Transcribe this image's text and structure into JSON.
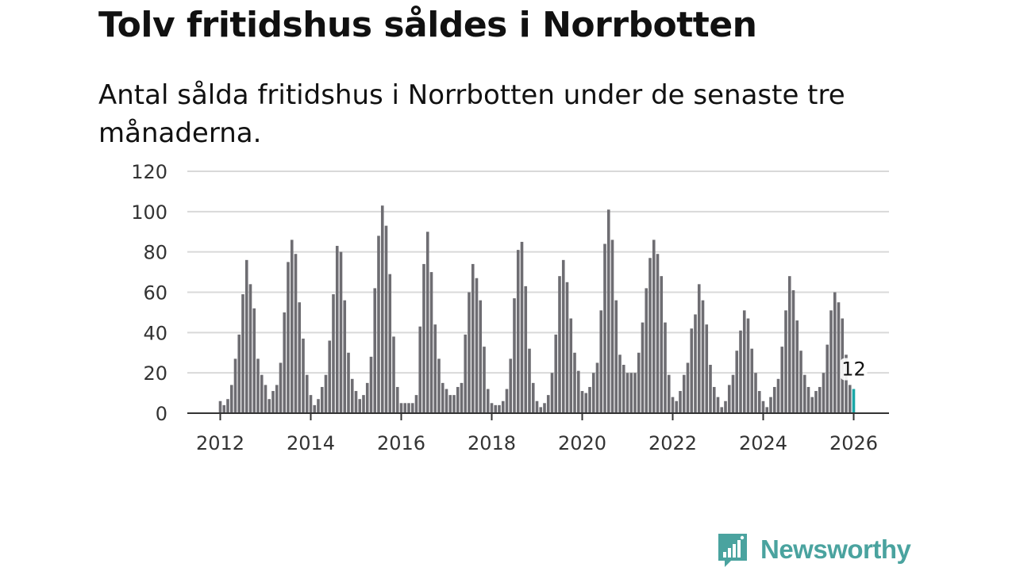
{
  "title": "Tolv fritidshus såldes i Norrbotten",
  "subtitle": "Antal sålda fritidshus i Norrbotten under de senaste tre månaderna.",
  "brand": {
    "name": "Newsworthy",
    "color": "#4aa39f",
    "icon": "newsworthy-logo-icon"
  },
  "colors": {
    "bar": "#6e6d72",
    "highlight": "#1ba7a7",
    "grid": "#d9d9d9",
    "axis": "#333333"
  },
  "chart_data": {
    "type": "bar",
    "x_start": "2012-01",
    "frequency": "monthly",
    "ylim": [
      0,
      120
    ],
    "yticks": [
      0,
      20,
      40,
      60,
      80,
      100,
      120
    ],
    "xticks": [
      "2012",
      "2014",
      "2016",
      "2018",
      "2020",
      "2022",
      "2024",
      "2026"
    ],
    "grid": true,
    "highlight_last": true,
    "last_label": "12",
    "values": [
      6,
      4,
      7,
      14,
      27,
      39,
      59,
      76,
      64,
      52,
      27,
      19,
      14,
      7,
      11,
      14,
      25,
      50,
      75,
      86,
      79,
      55,
      37,
      19,
      9,
      4,
      7,
      13,
      19,
      36,
      59,
      83,
      80,
      56,
      30,
      17,
      11,
      7,
      9,
      15,
      28,
      62,
      88,
      103,
      93,
      69,
      38,
      13,
      5,
      5,
      5,
      5,
      9,
      43,
      74,
      90,
      70,
      44,
      27,
      15,
      12,
      9,
      9,
      13,
      15,
      39,
      60,
      74,
      67,
      56,
      33,
      12,
      5,
      4,
      4,
      6,
      12,
      27,
      57,
      81,
      85,
      63,
      32,
      15,
      6,
      3,
      5,
      9,
      20,
      39,
      68,
      76,
      65,
      47,
      30,
      21,
      11,
      10,
      13,
      20,
      25,
      51,
      84,
      101,
      86,
      56,
      29,
      24,
      20,
      20,
      20,
      30,
      45,
      62,
      77,
      86,
      79,
      68,
      45,
      19,
      8,
      6,
      11,
      19,
      25,
      42,
      49,
      64,
      56,
      44,
      24,
      13,
      8,
      3,
      6,
      14,
      19,
      31,
      41,
      51,
      47,
      32,
      20,
      11,
      6,
      3,
      8,
      13,
      17,
      33,
      51,
      68,
      61,
      46,
      31,
      19,
      13,
      8,
      11,
      13,
      20,
      34,
      51,
      60,
      55,
      47,
      29,
      14,
      12
    ]
  }
}
